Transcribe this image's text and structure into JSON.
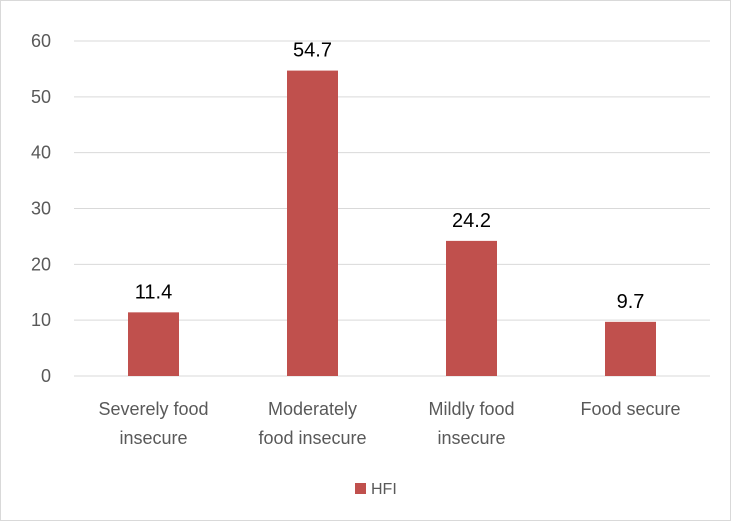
{
  "chart_data": {
    "type": "bar",
    "categories": [
      [
        "Severely food",
        "insecure"
      ],
      [
        "Moderately",
        "food insecure"
      ],
      [
        "Mildly food",
        "insecure"
      ],
      [
        "Food secure"
      ]
    ],
    "series": [
      {
        "name": "HFI",
        "values": [
          11.4,
          54.7,
          24.2,
          9.7
        ],
        "color": "#c0504d"
      }
    ],
    "data_labels": [
      "11.4",
      "54.7",
      "24.2",
      "9.7"
    ],
    "y_ticks": [
      0,
      10,
      20,
      30,
      40,
      50,
      60
    ],
    "ylim": [
      0,
      60
    ],
    "grid": true,
    "gridline_color": "#d9d9d9",
    "legend_position": "bottom"
  }
}
